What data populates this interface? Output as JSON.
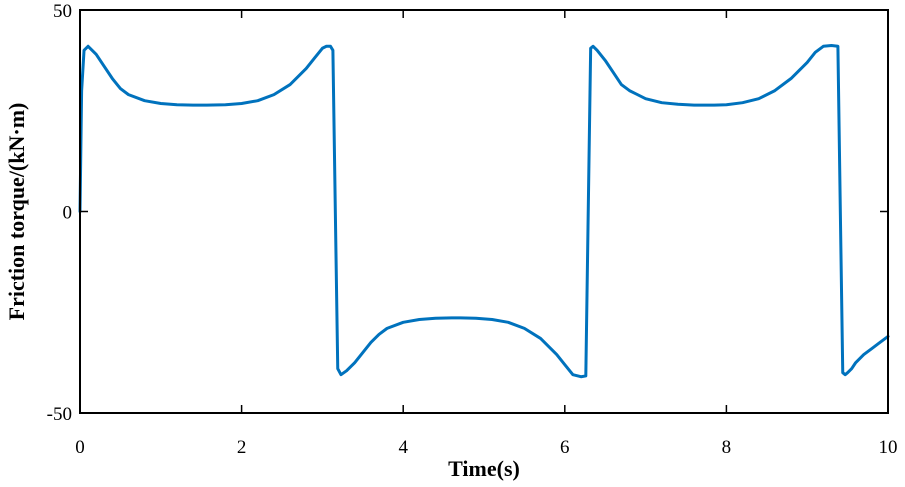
{
  "chart_data": {
    "type": "line",
    "title": "",
    "xlabel": "Time(s)",
    "ylabel": "Friction torque/(kN·m)",
    "xlim": [
      0,
      10
    ],
    "ylim": [
      -50,
      50
    ],
    "xticks": [
      0,
      2,
      4,
      6,
      8,
      10
    ],
    "yticks": [
      -50,
      0,
      50
    ],
    "xtick_labels": [
      "0",
      "2",
      "4",
      "6",
      "8",
      "10"
    ],
    "ytick_labels": [
      "-50",
      "0",
      "50"
    ],
    "grid": false,
    "legend": "none",
    "series": [
      {
        "color": "#0072BD",
        "x": [
          0.0,
          0.02,
          0.05,
          0.1,
          0.2,
          0.3,
          0.4,
          0.5,
          0.6,
          0.8,
          1.0,
          1.2,
          1.4,
          1.57,
          1.8,
          2.0,
          2.2,
          2.4,
          2.6,
          2.8,
          2.9,
          3.0,
          3.05,
          3.1,
          3.13,
          3.16,
          3.19,
          3.23,
          3.3,
          3.4,
          3.5,
          3.6,
          3.7,
          3.8,
          4.0,
          4.2,
          4.4,
          4.6,
          4.71,
          4.9,
          5.1,
          5.3,
          5.5,
          5.7,
          5.9,
          6.0,
          6.1,
          6.2,
          6.26,
          6.29,
          6.32,
          6.35,
          6.4,
          6.5,
          6.6,
          6.7,
          6.8,
          7.0,
          7.2,
          7.4,
          7.6,
          7.85,
          8.0,
          8.2,
          8.4,
          8.6,
          8.8,
          9.0,
          9.1,
          9.2,
          9.3,
          9.38,
          9.41,
          9.44,
          9.47,
          9.5,
          9.55,
          9.6,
          9.7,
          9.8,
          9.9,
          10.0
        ],
        "y": [
          0,
          30,
          40,
          41,
          39,
          36,
          33,
          30.5,
          29,
          27.5,
          26.8,
          26.5,
          26.4,
          26.4,
          26.5,
          26.8,
          27.5,
          29,
          31.5,
          35.5,
          38,
          40.5,
          41,
          41,
          40,
          0,
          -39,
          -40.5,
          -39.5,
          -37.5,
          -35,
          -32.5,
          -30.5,
          -29,
          -27.5,
          -26.8,
          -26.5,
          -26.4,
          -26.4,
          -26.5,
          -26.8,
          -27.5,
          -29,
          -31.5,
          -35.5,
          -38,
          -40.5,
          -41,
          -40.8,
          0,
          40.5,
          41,
          40,
          37.5,
          34.5,
          31.5,
          30,
          28,
          27,
          26.6,
          26.4,
          26.4,
          26.5,
          27,
          28,
          30,
          33,
          37,
          39.5,
          41,
          41.2,
          41,
          0,
          -40,
          -40.5,
          -40,
          -39,
          -37.5,
          -35.5,
          -34,
          -32.5,
          -31
        ]
      }
    ]
  }
}
